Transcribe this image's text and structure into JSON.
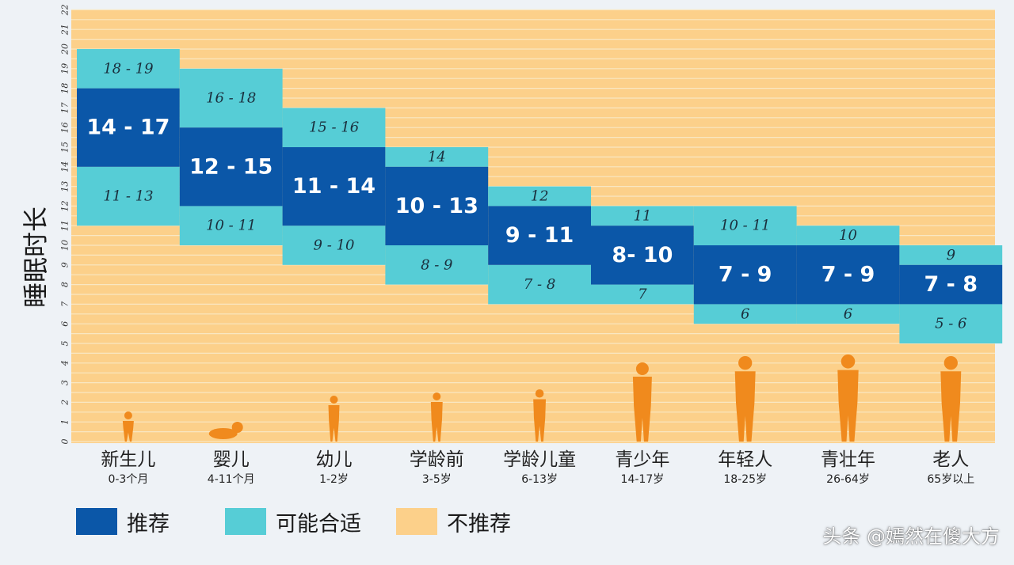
{
  "chart_data": {
    "type": "range-bar",
    "ylabel": "睡眠时长",
    "ylim": [
      0,
      22
    ],
    "yticks": [
      0,
      1,
      2,
      3,
      4,
      5,
      6,
      7,
      8,
      9,
      10,
      11,
      12,
      13,
      14,
      15,
      16,
      17,
      18,
      19,
      20,
      21,
      22
    ],
    "categories": [
      {
        "name": "新生儿",
        "age": "0-3个月",
        "ok_low": [
          11,
          13
        ],
        "rec": [
          14,
          17
        ],
        "ok_high": [
          18,
          19
        ],
        "lbl_low": "11 - 13",
        "lbl_rec": "14 - 17",
        "lbl_high": "18 - 19"
      },
      {
        "name": "婴儿",
        "age": "4-11个月",
        "ok_low": [
          10,
          11
        ],
        "rec": [
          12,
          15
        ],
        "ok_high": [
          16,
          18
        ],
        "lbl_low": "10 - 11",
        "lbl_rec": "12 - 15",
        "lbl_high": "16 - 18"
      },
      {
        "name": "幼儿",
        "age": "1-2岁",
        "ok_low": [
          9,
          10
        ],
        "rec": [
          11,
          14
        ],
        "ok_high": [
          15,
          16
        ],
        "lbl_low": "9 - 10",
        "lbl_rec": "11 - 14",
        "lbl_high": "15 - 16"
      },
      {
        "name": "学龄前",
        "age": "3-5岁",
        "ok_low": [
          8,
          9
        ],
        "rec": [
          10,
          13
        ],
        "ok_high": [
          14,
          14
        ],
        "lbl_low": "8 - 9",
        "lbl_rec": "10 - 13",
        "lbl_high": "14"
      },
      {
        "name": "学龄儿童",
        "age": "6-13岁",
        "ok_low": [
          7,
          8
        ],
        "rec": [
          9,
          11
        ],
        "ok_high": [
          12,
          12
        ],
        "lbl_low": "7 - 8",
        "lbl_rec": "9 - 11",
        "lbl_high": "12"
      },
      {
        "name": "青少年",
        "age": "14-17岁",
        "ok_low": [
          7,
          7
        ],
        "rec": [
          8,
          10
        ],
        "ok_high": [
          11,
          11
        ],
        "lbl_low": "7",
        "lbl_rec": "8- 10",
        "lbl_high": "11"
      },
      {
        "name": "年轻人",
        "age": "18-25岁",
        "ok_low": [
          6,
          6
        ],
        "rec": [
          7,
          9
        ],
        "ok_high": [
          10,
          11
        ],
        "lbl_low": "6",
        "lbl_rec": "7 - 9",
        "lbl_high": "10 - 11"
      },
      {
        "name": "青壮年",
        "age": "26-64岁",
        "ok_low": [
          6,
          6
        ],
        "rec": [
          7,
          9
        ],
        "ok_high": [
          10,
          10
        ],
        "lbl_low": "6",
        "lbl_rec": "7 - 9",
        "lbl_high": "10"
      },
      {
        "name": "老人",
        "age": "65岁以上",
        "ok_low": [
          5,
          6
        ],
        "rec": [
          7,
          8
        ],
        "ok_high": [
          9,
          9
        ],
        "lbl_low": "5 - 6",
        "lbl_rec": "7 - 8",
        "lbl_high": "9"
      }
    ],
    "legend": [
      {
        "label": "推荐",
        "color": "#0b57a8"
      },
      {
        "label": "可能合适",
        "color": "#56cdd6"
      },
      {
        "label": "不推荐",
        "color": "#fcd08a"
      }
    ],
    "grid": true
  },
  "colors": {
    "background": "#fcd08a",
    "grid": "#f9e7c2",
    "recommended": "#0b57a8",
    "maybe": "#56cdd6",
    "silhouette": "#f08a1d"
  },
  "watermark": "头条 @嫣然在傻大方"
}
